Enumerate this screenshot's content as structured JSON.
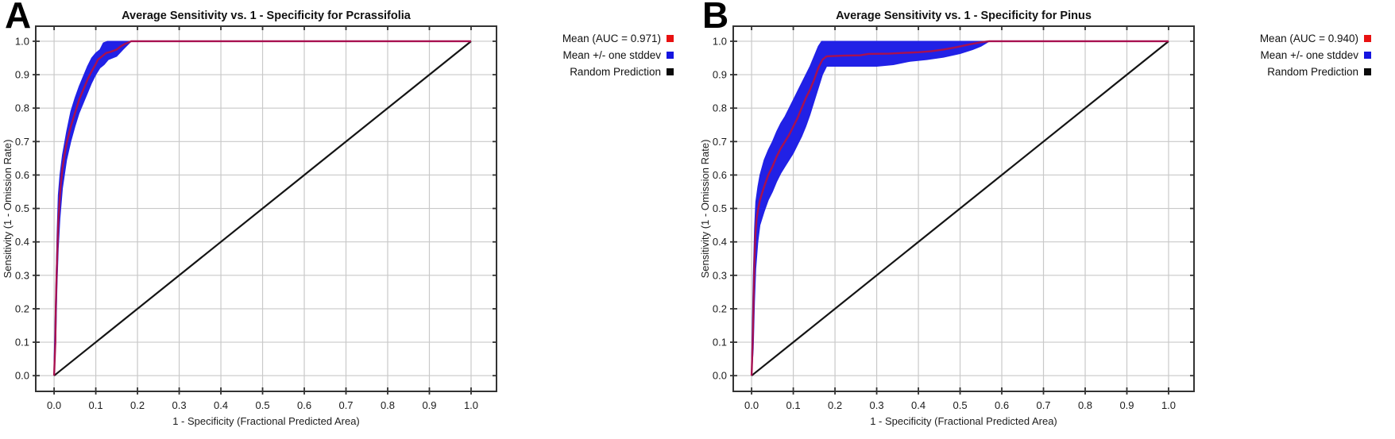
{
  "figure": {
    "background": "#ffffff"
  },
  "style_colors": {
    "grid": "#c9c9c9",
    "frame": "#333333",
    "mean_line": "#a81150",
    "band_fill": "#2121e6",
    "diagonal": "#141414",
    "legend_red": "#e81111",
    "legend_blue": "#1515e0",
    "legend_black": "#0a0a0a"
  },
  "chart_data": [
    {
      "type": "line",
      "panel_label": "A",
      "title": "Average Sensitivity vs. 1 - Specificity for Pcrassifolia",
      "xlabel": "1 - Specificity (Fractional Predicted Area)",
      "ylabel": "Sensitivity (1 - Omission Rate)",
      "auc": 0.971,
      "xlim": [
        -0.044,
        1.061
      ],
      "ylim": [
        -0.047,
        1.045
      ],
      "xticks": [
        0.0,
        0.1,
        0.2,
        0.3,
        0.4,
        0.5,
        0.6,
        0.7,
        0.8,
        0.9,
        1.0
      ],
      "yticks": [
        0.0,
        0.1,
        0.2,
        0.3,
        0.4,
        0.5,
        0.6,
        0.7,
        0.8,
        0.9,
        1.0
      ],
      "grid": true,
      "legend_position": "right-outside-top",
      "legend": [
        {
          "label": "Mean (AUC = 0.971)",
          "color": "#e81111"
        },
        {
          "label": "Mean +/- one stddev",
          "color": "#1515e0"
        },
        {
          "label": "Random Prediction",
          "color": "#0a0a0a"
        }
      ],
      "series": [
        {
          "name": "Mean +/- one stddev",
          "type": "band",
          "color": "#2121e6",
          "upper": [
            [
              0,
              0.05
            ],
            [
              0.004,
              0.25
            ],
            [
              0.007,
              0.42
            ],
            [
              0.01,
              0.54
            ],
            [
              0.014,
              0.6
            ],
            [
              0.02,
              0.66
            ],
            [
              0.03,
              0.73
            ],
            [
              0.04,
              0.79
            ],
            [
              0.05,
              0.83
            ],
            [
              0.06,
              0.865
            ],
            [
              0.07,
              0.895
            ],
            [
              0.08,
              0.925
            ],
            [
              0.09,
              0.95
            ],
            [
              0.1,
              0.965
            ],
            [
              0.11,
              0.975
            ],
            [
              0.118,
              0.995
            ],
            [
              0.128,
              1.0
            ],
            [
              0.185,
              1.0
            ]
          ],
          "lower": [
            [
              0,
              0.0
            ],
            [
              0.004,
              0.1
            ],
            [
              0.007,
              0.27
            ],
            [
              0.01,
              0.38
            ],
            [
              0.014,
              0.47
            ],
            [
              0.02,
              0.56
            ],
            [
              0.03,
              0.645
            ],
            [
              0.04,
              0.7
            ],
            [
              0.05,
              0.745
            ],
            [
              0.06,
              0.785
            ],
            [
              0.07,
              0.815
            ],
            [
              0.08,
              0.845
            ],
            [
              0.09,
              0.875
            ],
            [
              0.1,
              0.9
            ],
            [
              0.11,
              0.92
            ],
            [
              0.12,
              0.93
            ],
            [
              0.13,
              0.945
            ],
            [
              0.15,
              0.955
            ],
            [
              0.165,
              0.975
            ],
            [
              0.185,
              1.0
            ]
          ]
        },
        {
          "name": "Random Prediction",
          "type": "line",
          "color": "#141414",
          "width": 2.2,
          "points": [
            [
              0,
              0
            ],
            [
              1,
              1
            ]
          ]
        },
        {
          "name": "Mean",
          "type": "line",
          "color": "#a81150",
          "width": 2.4,
          "points": [
            [
              0,
              0
            ],
            [
              0.003,
              0.1
            ],
            [
              0.004,
              0.2
            ],
            [
              0.006,
              0.3
            ],
            [
              0.008,
              0.38
            ],
            [
              0.01,
              0.46
            ],
            [
              0.013,
              0.52
            ],
            [
              0.016,
              0.57
            ],
            [
              0.02,
              0.62
            ],
            [
              0.025,
              0.66
            ],
            [
              0.03,
              0.695
            ],
            [
              0.04,
              0.745
            ],
            [
              0.05,
              0.785
            ],
            [
              0.06,
              0.825
            ],
            [
              0.07,
              0.855
            ],
            [
              0.08,
              0.885
            ],
            [
              0.09,
              0.91
            ],
            [
              0.1,
              0.932
            ],
            [
              0.105,
              0.945
            ],
            [
              0.115,
              0.955
            ],
            [
              0.125,
              0.965
            ],
            [
              0.135,
              0.968
            ],
            [
              0.15,
              0.975
            ],
            [
              0.16,
              0.985
            ],
            [
              0.17,
              0.992
            ],
            [
              0.185,
              1.0
            ],
            [
              1.0,
              1.0
            ]
          ]
        }
      ]
    },
    {
      "type": "line",
      "panel_label": "B",
      "title": "Average Sensitivity vs. 1 - Specificity for Pinus",
      "xlabel": "1 - Specificity (Fractional Predicted Area)",
      "ylabel": "Sensitivity (1 - Omission Rate)",
      "auc": 0.94,
      "xlim": [
        -0.044,
        1.061
      ],
      "ylim": [
        -0.047,
        1.045
      ],
      "xticks": [
        0.0,
        0.1,
        0.2,
        0.3,
        0.4,
        0.5,
        0.6,
        0.7,
        0.8,
        0.9,
        1.0
      ],
      "yticks": [
        0.0,
        0.1,
        0.2,
        0.3,
        0.4,
        0.5,
        0.6,
        0.7,
        0.8,
        0.9,
        1.0
      ],
      "grid": true,
      "legend_position": "right-outside-top",
      "legend": [
        {
          "label": "Mean (AUC = 0.940)",
          "color": "#e81111"
        },
        {
          "label": "Mean +/- one stddev",
          "color": "#1515e0"
        },
        {
          "label": "Random Prediction",
          "color": "#0a0a0a"
        }
      ],
      "series": [
        {
          "name": "Mean +/- one stddev",
          "type": "band",
          "color": "#2121e6",
          "upper": [
            [
              0,
              0.05
            ],
            [
              0.004,
              0.3
            ],
            [
              0.007,
              0.44
            ],
            [
              0.01,
              0.52
            ],
            [
              0.015,
              0.565
            ],
            [
              0.02,
              0.6
            ],
            [
              0.03,
              0.645
            ],
            [
              0.04,
              0.675
            ],
            [
              0.05,
              0.7
            ],
            [
              0.06,
              0.73
            ],
            [
              0.07,
              0.755
            ],
            [
              0.08,
              0.775
            ],
            [
              0.09,
              0.8
            ],
            [
              0.1,
              0.825
            ],
            [
              0.11,
              0.85
            ],
            [
              0.12,
              0.875
            ],
            [
              0.13,
              0.9
            ],
            [
              0.14,
              0.925
            ],
            [
              0.15,
              0.955
            ],
            [
              0.16,
              0.985
            ],
            [
              0.168,
              1.0
            ],
            [
              0.57,
              1.0
            ]
          ],
          "lower": [
            [
              0,
              0.0
            ],
            [
              0.004,
              0.08
            ],
            [
              0.007,
              0.22
            ],
            [
              0.01,
              0.32
            ],
            [
              0.015,
              0.4
            ],
            [
              0.02,
              0.45
            ],
            [
              0.03,
              0.49
            ],
            [
              0.04,
              0.525
            ],
            [
              0.05,
              0.55
            ],
            [
              0.06,
              0.58
            ],
            [
              0.07,
              0.605
            ],
            [
              0.08,
              0.625
            ],
            [
              0.09,
              0.645
            ],
            [
              0.1,
              0.665
            ],
            [
              0.11,
              0.69
            ],
            [
              0.12,
              0.715
            ],
            [
              0.13,
              0.745
            ],
            [
              0.14,
              0.78
            ],
            [
              0.15,
              0.82
            ],
            [
              0.16,
              0.86
            ],
            [
              0.17,
              0.9
            ],
            [
              0.18,
              0.925
            ],
            [
              0.3,
              0.925
            ],
            [
              0.34,
              0.93
            ],
            [
              0.38,
              0.94
            ],
            [
              0.42,
              0.945
            ],
            [
              0.46,
              0.952
            ],
            [
              0.5,
              0.963
            ],
            [
              0.53,
              0.975
            ],
            [
              0.55,
              0.985
            ],
            [
              0.57,
              1.0
            ]
          ]
        },
        {
          "name": "Random Prediction",
          "type": "line",
          "color": "#141414",
          "width": 2.2,
          "points": [
            [
              0,
              0
            ],
            [
              1,
              1
            ]
          ]
        },
        {
          "name": "Mean",
          "type": "line",
          "color": "#a81150",
          "width": 2.4,
          "points": [
            [
              0,
              0
            ],
            [
              0.003,
              0.12
            ],
            [
              0.005,
              0.25
            ],
            [
              0.007,
              0.35
            ],
            [
              0.009,
              0.42
            ],
            [
              0.012,
              0.47
            ],
            [
              0.016,
              0.5
            ],
            [
              0.02,
              0.525
            ],
            [
              0.03,
              0.565
            ],
            [
              0.04,
              0.6
            ],
            [
              0.05,
              0.625
            ],
            [
              0.06,
              0.655
            ],
            [
              0.07,
              0.68
            ],
            [
              0.08,
              0.7
            ],
            [
              0.09,
              0.72
            ],
            [
              0.1,
              0.745
            ],
            [
              0.11,
              0.77
            ],
            [
              0.12,
              0.8
            ],
            [
              0.13,
              0.83
            ],
            [
              0.14,
              0.855
            ],
            [
              0.15,
              0.885
            ],
            [
              0.16,
              0.92
            ],
            [
              0.17,
              0.945
            ],
            [
              0.18,
              0.955
            ],
            [
              0.22,
              0.957
            ],
            [
              0.26,
              0.958
            ],
            [
              0.28,
              0.962
            ],
            [
              0.33,
              0.963
            ],
            [
              0.36,
              0.965
            ],
            [
              0.4,
              0.967
            ],
            [
              0.43,
              0.97
            ],
            [
              0.46,
              0.975
            ],
            [
              0.49,
              0.982
            ],
            [
              0.52,
              0.99
            ],
            [
              0.55,
              0.997
            ],
            [
              0.57,
              1.0
            ],
            [
              1.0,
              1.0
            ]
          ]
        }
      ]
    }
  ]
}
